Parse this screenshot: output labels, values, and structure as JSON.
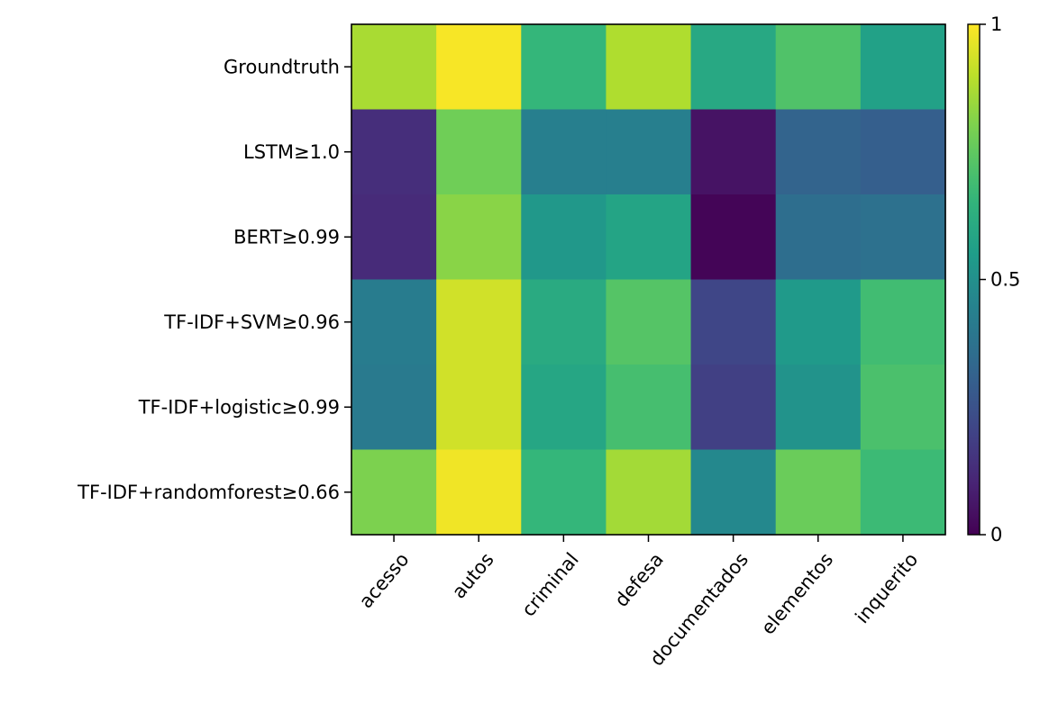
{
  "chart_data": {
    "type": "heatmap",
    "title": "",
    "xlabel": "",
    "ylabel": "",
    "x_categories": [
      "acesso",
      "autos",
      "criminal",
      "defesa",
      "documentados",
      "elementos",
      "inquerito"
    ],
    "y_categories": [
      "Groundtruth",
      "LSTM≥1.0",
      "BERT≥0.99",
      "TF-IDF+SVM≥0.96",
      "TF-IDF+logistic≥0.99",
      "TF-IDF+randomforest≥0.66"
    ],
    "values": [
      [
        0.87,
        0.99,
        0.66,
        0.88,
        0.6,
        0.72,
        0.57
      ],
      [
        0.13,
        0.78,
        0.43,
        0.43,
        0.05,
        0.32,
        0.3
      ],
      [
        0.12,
        0.82,
        0.53,
        0.58,
        0.01,
        0.36,
        0.37
      ],
      [
        0.42,
        0.93,
        0.61,
        0.73,
        0.21,
        0.54,
        0.69
      ],
      [
        0.41,
        0.93,
        0.59,
        0.7,
        0.19,
        0.51,
        0.71
      ],
      [
        0.8,
        0.98,
        0.66,
        0.86,
        0.47,
        0.77,
        0.68
      ]
    ],
    "colormap": "viridis",
    "vmin": 0,
    "vmax": 1,
    "colorbar": {
      "ticks": [
        0,
        0.5,
        1
      ],
      "tick_labels": [
        "0",
        "0.5",
        "1"
      ]
    }
  }
}
